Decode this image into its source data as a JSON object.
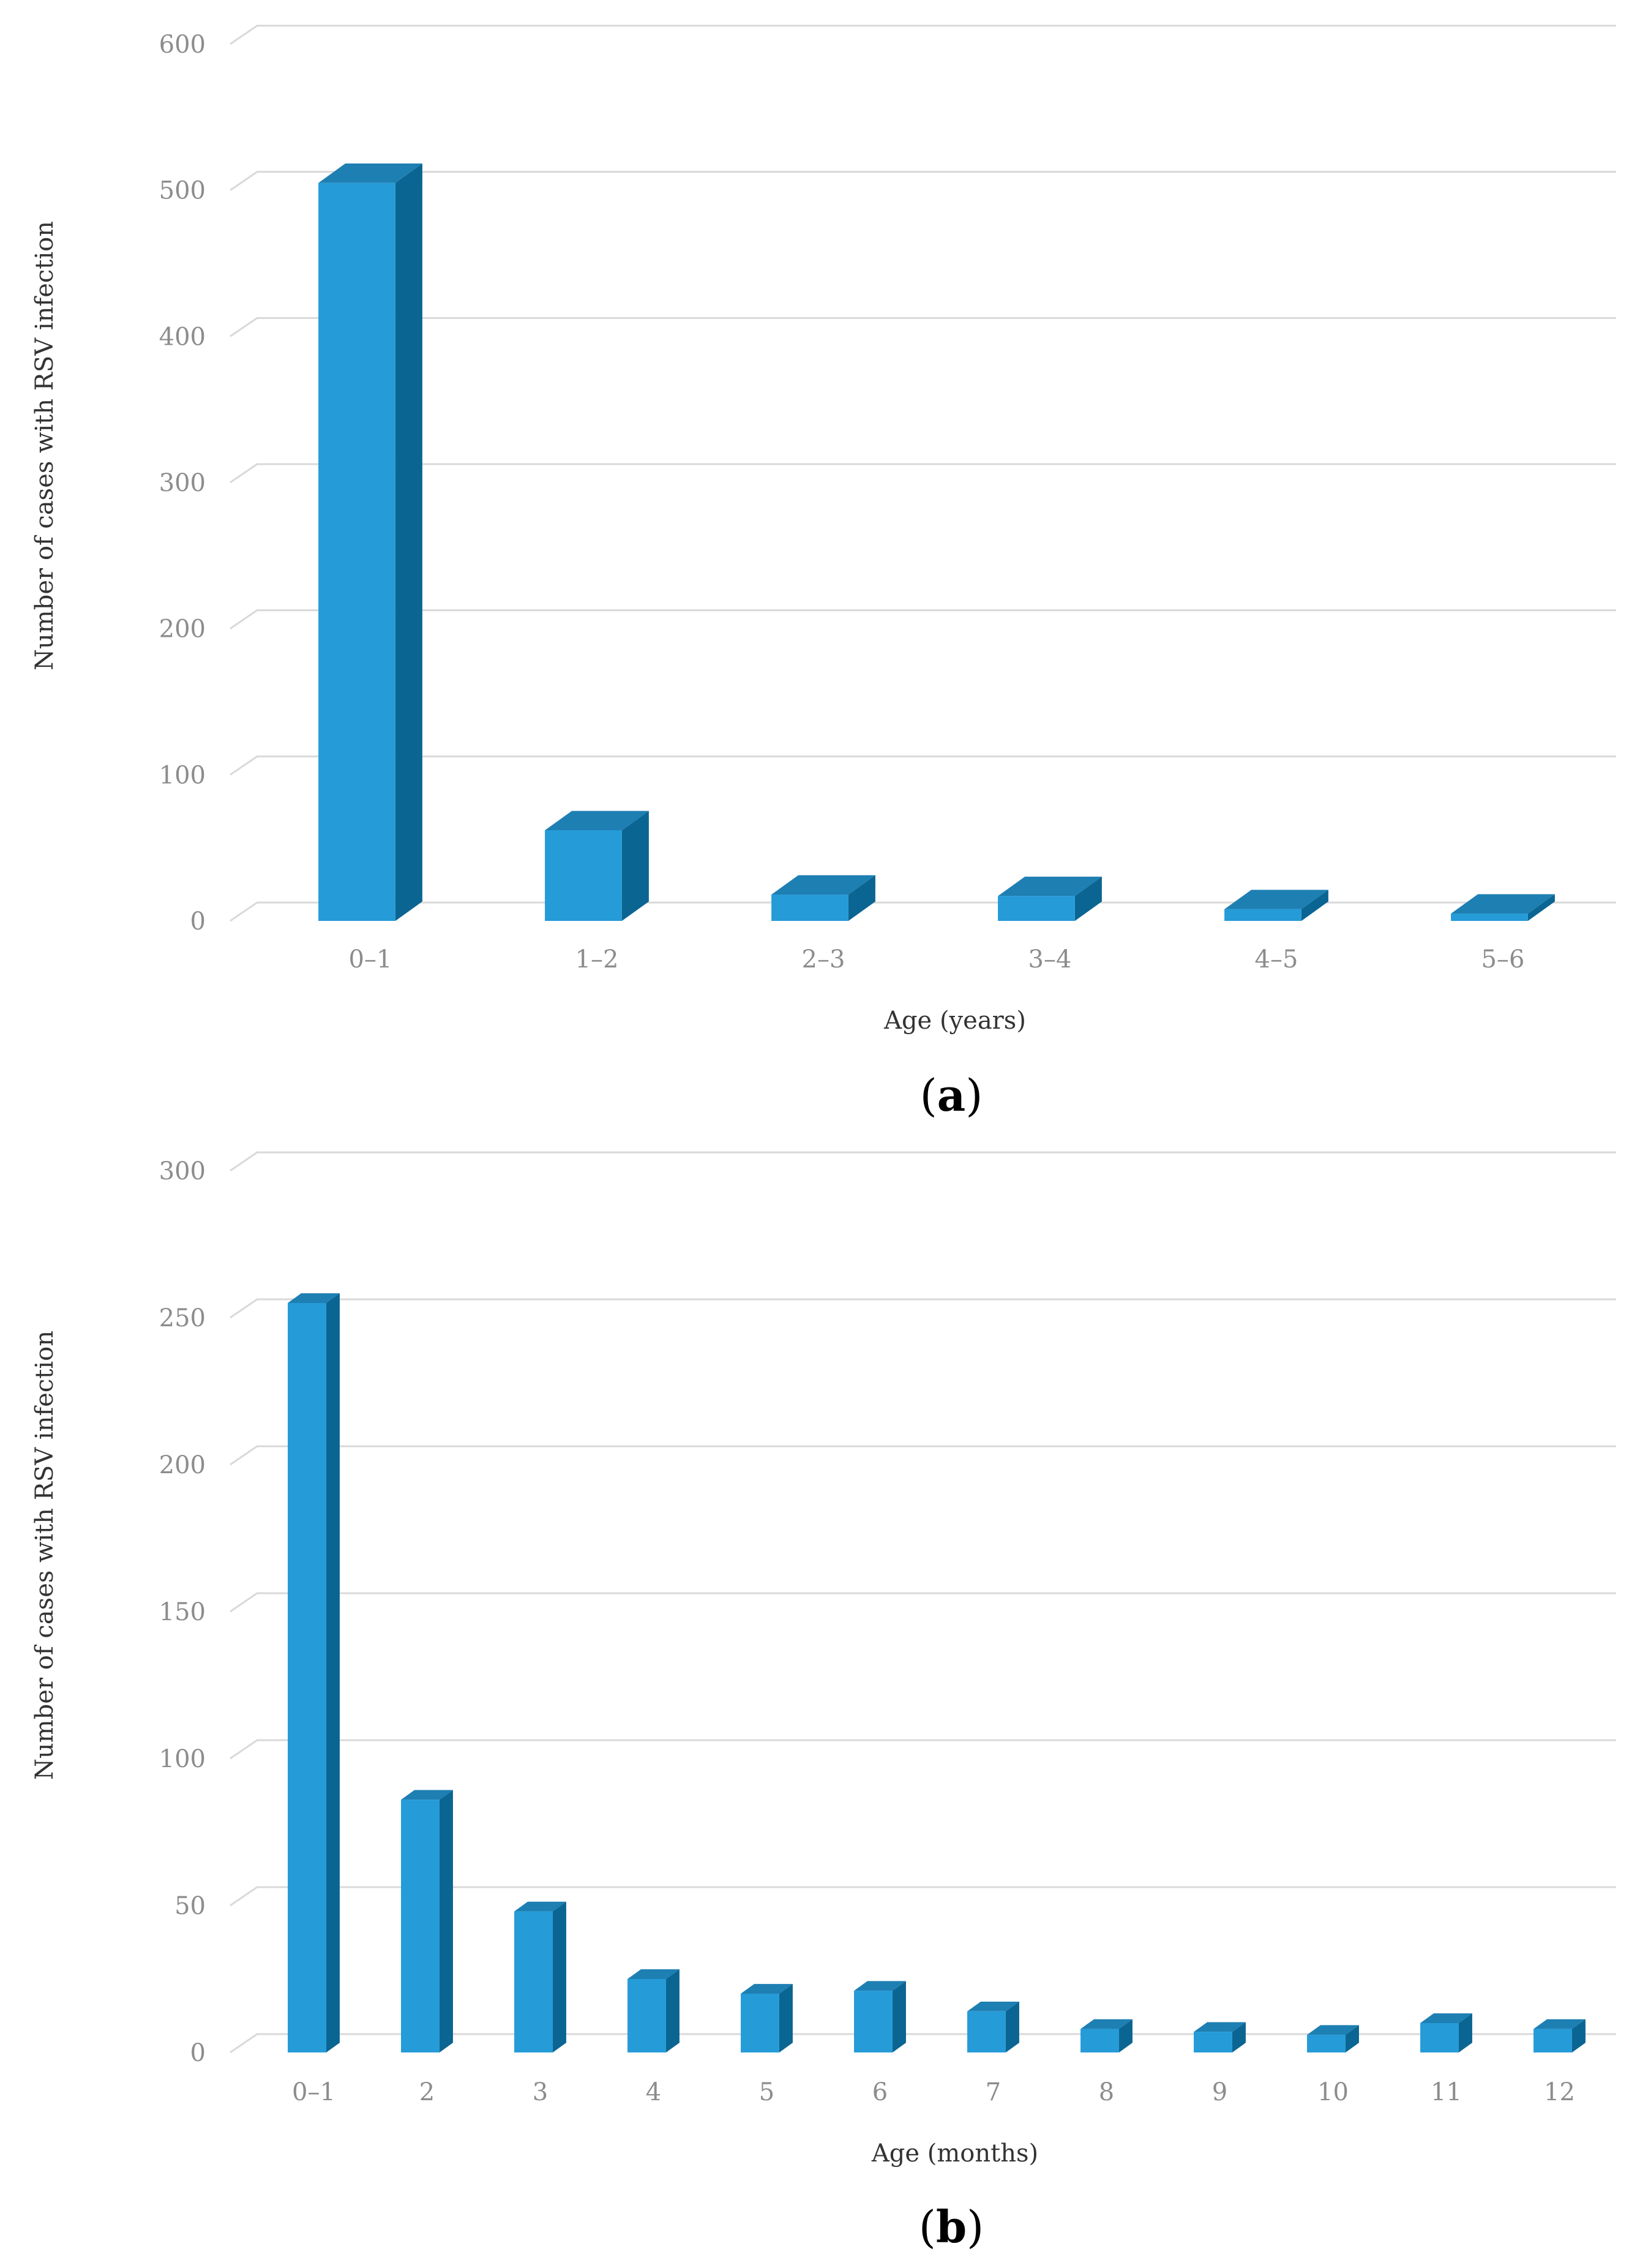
{
  "colors": {
    "bar_front": "#259bd8",
    "bar_top": "#1e7fb3",
    "bar_side": "#0b6592",
    "grid": "#d9d9d9"
  },
  "chart_data": [
    {
      "type": "bar",
      "panel_label": "(a)",
      "panel_letter": "a",
      "title": "",
      "xlabel": "Age (years)",
      "ylabel": "Number of cases with RSV infection",
      "categories": [
        "0–1",
        "1–2",
        "2–3",
        "3–4",
        "4–5",
        "5–6"
      ],
      "values": [
        505,
        62,
        18,
        17,
        8,
        5
      ],
      "ylim": [
        0,
        600
      ],
      "yticks": [
        0,
        100,
        200,
        300,
        400,
        500,
        600
      ],
      "grid": true,
      "legend": "none",
      "style": "3d-column"
    },
    {
      "type": "bar",
      "panel_label": "(b)",
      "panel_letter": "b",
      "title": "",
      "xlabel": "Age (months)",
      "ylabel": "Number of cases with RSV infection",
      "categories": [
        "0–1",
        "2",
        "3",
        "4",
        "5",
        "6",
        "7",
        "8",
        "9",
        "10",
        "11",
        "12"
      ],
      "values": [
        255,
        86,
        48,
        25,
        20,
        21,
        14,
        8,
        7,
        6,
        10,
        8
      ],
      "ylim": [
        0,
        300
      ],
      "yticks": [
        0,
        50,
        100,
        150,
        200,
        250,
        300
      ],
      "grid": true,
      "legend": "none",
      "style": "3d-column"
    }
  ]
}
